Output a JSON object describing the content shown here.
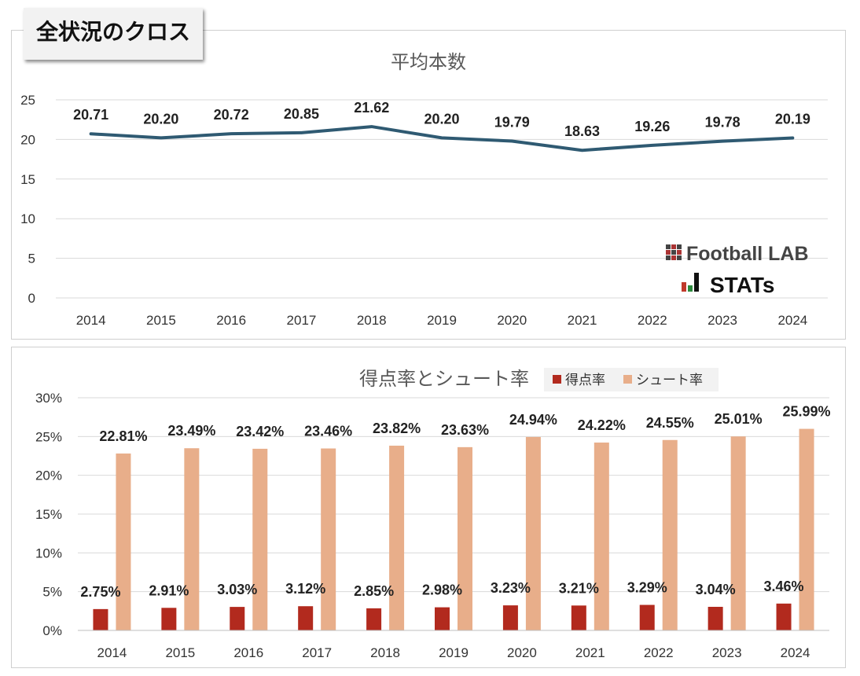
{
  "page": {
    "badge_title": "全状況のクロス"
  },
  "branding": {
    "line1": "Football LAB",
    "line2": "STATs"
  },
  "chart_data": [
    {
      "type": "line",
      "title": "平均本数",
      "x": [
        "2014",
        "2015",
        "2016",
        "2017",
        "2018",
        "2019",
        "2020",
        "2021",
        "2022",
        "2023",
        "2024"
      ],
      "series": [
        {
          "values": [
            20.71,
            20.2,
            20.72,
            20.85,
            21.62,
            20.2,
            19.79,
            18.63,
            19.26,
            19.78,
            20.19
          ],
          "color": "#2f5a72"
        }
      ],
      "data_labels": [
        "20.71",
        "20.20",
        "20.72",
        "20.85",
        "21.62",
        "20.20",
        "19.79",
        "18.63",
        "19.26",
        "19.78",
        "20.19"
      ],
      "ylim": [
        0,
        25
      ],
      "yticks": [
        "0",
        "5",
        "10",
        "15",
        "20",
        "25"
      ],
      "grid": true,
      "xlabel": "",
      "ylabel": ""
    },
    {
      "type": "bar",
      "title": "得点率とシュート率",
      "categories": [
        "2014",
        "2015",
        "2016",
        "2017",
        "2018",
        "2019",
        "2020",
        "2021",
        "2022",
        "2023",
        "2024"
      ],
      "series": [
        {
          "name": "得点率",
          "color": "#b22a1e",
          "values": [
            2.75,
            2.91,
            3.03,
            3.12,
            2.85,
            2.98,
            3.23,
            3.21,
            3.29,
            3.04,
            3.46
          ],
          "labels": [
            "2.75%",
            "2.91%",
            "3.03%",
            "3.12%",
            "2.85%",
            "2.98%",
            "3.23%",
            "3.21%",
            "3.29%",
            "3.04%",
            "3.46%"
          ]
        },
        {
          "name": "シュート率",
          "color": "#e8ae8a",
          "values": [
            22.81,
            23.49,
            23.42,
            23.46,
            23.82,
            23.63,
            24.94,
            24.22,
            24.55,
            25.01,
            25.99
          ],
          "labels": [
            "22.81%",
            "23.49%",
            "23.42%",
            "23.46%",
            "23.82%",
            "23.63%",
            "24.94%",
            "24.22%",
            "24.55%",
            "25.01%",
            "25.99%"
          ]
        }
      ],
      "ylim": [
        0,
        30
      ],
      "yticks": [
        "0%",
        "5%",
        "10%",
        "15%",
        "20%",
        "25%",
        "30%"
      ],
      "legend_position": "top-right",
      "grid": true,
      "xlabel": "",
      "ylabel": ""
    }
  ]
}
